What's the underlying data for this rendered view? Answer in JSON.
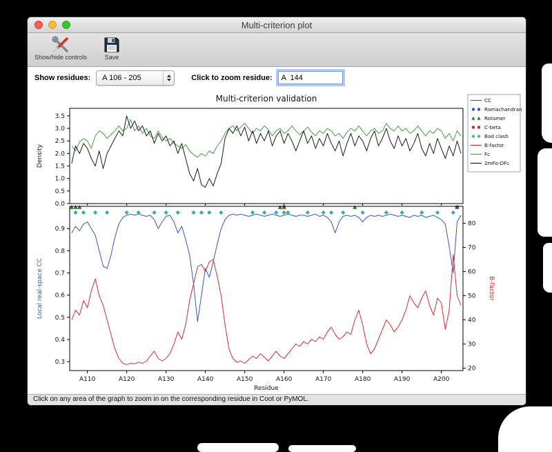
{
  "window": {
    "title": "Multi-criterion plot",
    "toolbar": {
      "show_hide_label": "Show/hide controls",
      "save_label": "Save"
    },
    "controls": {
      "show_residues_label": "Show residues:",
      "residue_range_value": "A 106 - 205",
      "zoom_label": "Click to zoom residue:",
      "zoom_value": "A  144"
    },
    "status_bar": "Click on any area of the graph to zoom in on the corresponding residue in Coot or PyMOL."
  },
  "figure": {
    "title": "Multi-criterion validation",
    "legend": [
      {
        "label": "CC",
        "type": "line",
        "color": "#3355cc"
      },
      {
        "label": "Ramachandran",
        "type": "circle",
        "color": "#3355cc"
      },
      {
        "label": "Rotamer",
        "type": "triangle",
        "color": "#1f7a1f"
      },
      {
        "label": "C-beta",
        "type": "square",
        "color": "#cc2222"
      },
      {
        "label": "Bad clash",
        "type": "diamond",
        "color": "#35ae9e"
      },
      {
        "label": "B-factor",
        "type": "line",
        "color": "#dd2b2b"
      },
      {
        "label": "Fc",
        "type": "line",
        "color": "#44a044"
      },
      {
        "label": "2mFo-DFc",
        "type": "line",
        "color": "#1a1a1a"
      }
    ]
  },
  "chart_data": [
    {
      "type": "line",
      "panel": "density",
      "ylabel": "Density",
      "ylim": [
        0,
        3.8
      ],
      "yticks": [
        0.0,
        0.5,
        1.0,
        1.5,
        2.0,
        2.5,
        3.0,
        3.5
      ],
      "x_start": 106,
      "series": [
        {
          "name": "Fc",
          "color": "#44a044",
          "values": [
            2.3,
            2.1,
            2.45,
            2.6,
            2.5,
            2.2,
            2.7,
            2.9,
            2.8,
            2.6,
            2.75,
            2.9,
            3.1,
            2.9,
            3.0,
            3.35,
            2.9,
            3.1,
            2.8,
            3.0,
            2.7,
            2.6,
            2.9,
            2.65,
            2.5,
            2.6,
            2.4,
            2.3,
            2.2,
            2.35,
            2.1,
            1.95,
            1.85,
            2.0,
            1.9,
            2.1,
            2.0,
            2.3,
            2.5,
            2.8,
            3.0,
            3.1,
            2.9,
            3.05,
            3.2,
            3.0,
            2.8,
            3.0,
            2.9,
            3.1,
            2.95,
            2.7,
            2.9,
            3.0,
            2.8,
            2.9,
            3.1,
            2.9,
            2.75,
            2.9,
            3.05,
            2.85,
            2.7,
            2.9,
            2.8,
            3.0,
            2.9,
            2.7,
            2.8,
            2.6,
            2.85,
            3.0,
            2.9,
            3.1,
            2.9,
            2.7,
            2.9,
            3.0,
            2.8,
            2.9,
            3.2,
            3.0,
            2.9,
            3.1,
            2.9,
            3.0,
            2.8,
            2.9,
            3.1,
            2.9,
            2.7,
            2.9,
            2.8,
            3.0,
            2.9,
            2.6,
            2.8,
            2.5,
            2.9,
            2.7
          ]
        },
        {
          "name": "2mFo-DFc",
          "color": "#1a1a1a",
          "values": [
            1.6,
            2.3,
            2.0,
            2.4,
            2.2,
            1.8,
            1.5,
            2.1,
            1.4,
            2.0,
            2.3,
            2.6,
            2.9,
            2.7,
            3.5,
            3.0,
            3.3,
            2.9,
            3.1,
            2.7,
            2.9,
            2.4,
            2.8,
            2.5,
            2.7,
            2.3,
            2.5,
            2.0,
            2.4,
            1.8,
            1.2,
            0.9,
            1.4,
            0.75,
            0.65,
            1.0,
            0.7,
            1.2,
            1.6,
            2.6,
            3.0,
            2.8,
            3.1,
            2.7,
            3.05,
            2.5,
            2.9,
            2.4,
            2.8,
            2.5,
            2.9,
            2.3,
            2.7,
            2.9,
            2.4,
            2.8,
            2.5,
            2.1,
            2.5,
            2.9,
            2.4,
            2.7,
            2.2,
            2.6,
            2.3,
            2.8,
            2.4,
            2.1,
            2.5,
            1.9,
            2.4,
            2.8,
            2.3,
            2.7,
            2.5,
            2.1,
            2.6,
            2.9,
            2.3,
            2.6,
            3.0,
            2.5,
            2.2,
            2.7,
            2.3,
            2.6,
            2.1,
            2.4,
            2.8,
            2.2,
            1.9,
            2.4,
            2.0,
            2.6,
            2.2,
            1.8,
            2.3,
            1.9,
            2.5,
            2.0
          ]
        }
      ]
    },
    {
      "type": "line",
      "panel": "cc_bfactor",
      "ylabel_left": "Local real-space CC",
      "ylabel_right": "B-factor",
      "xlabel": "Residue",
      "ylim_left": [
        0.26,
        1.0
      ],
      "yticks_left": [
        0.3,
        0.4,
        0.5,
        0.6,
        0.7,
        0.8,
        0.9
      ],
      "ylim_right": [
        19,
        87
      ],
      "yticks_right": [
        20,
        30,
        40,
        50,
        60,
        70,
        80
      ],
      "xticks": [
        110,
        120,
        130,
        140,
        150,
        160,
        170,
        180,
        190,
        200
      ],
      "xtick_prefix": "A",
      "x_start": 106,
      "series": [
        {
          "name": "CC",
          "color": "#3355cc",
          "axis": "left",
          "values": [
            0.88,
            0.91,
            0.89,
            0.92,
            0.93,
            0.9,
            0.87,
            0.8,
            0.73,
            0.72,
            0.78,
            0.86,
            0.92,
            0.95,
            0.96,
            0.965,
            0.96,
            0.965,
            0.96,
            0.955,
            0.96,
            0.94,
            0.9,
            0.93,
            0.955,
            0.96,
            0.93,
            0.88,
            0.91,
            0.85,
            0.78,
            0.65,
            0.48,
            0.6,
            0.72,
            0.68,
            0.75,
            0.83,
            0.9,
            0.94,
            0.96,
            0.965,
            0.96,
            0.965,
            0.96,
            0.955,
            0.96,
            0.965,
            0.96,
            0.955,
            0.96,
            0.965,
            0.96,
            0.955,
            0.96,
            0.965,
            0.96,
            0.955,
            0.96,
            0.96,
            0.955,
            0.96,
            0.965,
            0.955,
            0.96,
            0.95,
            0.93,
            0.88,
            0.93,
            0.955,
            0.96,
            0.955,
            0.96,
            0.95,
            0.93,
            0.95,
            0.96,
            0.955,
            0.96,
            0.955,
            0.96,
            0.965,
            0.96,
            0.955,
            0.96,
            0.955,
            0.95,
            0.96,
            0.955,
            0.96,
            0.95,
            0.955,
            0.96,
            0.95,
            0.94,
            0.92,
            0.82,
            0.7,
            0.93,
            0.96
          ]
        },
        {
          "name": "B-factor",
          "color": "#dd2b2b",
          "axis": "right",
          "values": [
            40,
            44,
            42,
            48,
            45,
            52,
            57,
            50,
            46,
            40,
            34,
            28,
            24,
            22,
            21.5,
            22,
            21.8,
            22.5,
            22,
            23,
            25,
            27,
            24,
            23,
            24,
            26,
            30,
            35,
            32,
            38,
            48,
            55,
            62,
            63,
            60,
            64,
            65,
            58,
            50,
            38,
            28,
            24,
            22.5,
            23,
            22,
            23.5,
            25,
            24,
            26,
            24.5,
            23,
            25,
            27,
            25,
            24,
            26,
            28,
            30,
            29,
            31,
            30,
            32,
            31,
            33,
            32,
            35,
            37,
            34,
            32,
            33,
            35,
            34,
            40,
            44,
            38,
            30,
            26,
            28,
            32,
            36,
            40,
            38,
            35,
            37,
            40,
            44,
            50,
            47,
            45,
            49,
            52,
            46,
            42,
            49,
            47,
            36,
            44,
            67,
            50,
            46
          ]
        }
      ],
      "markers": [
        {
          "name": "Bad clash",
          "shape": "diamond",
          "color": "#35ae9e",
          "y": 0.972,
          "x": [
            107,
            109,
            112,
            115,
            120,
            123,
            127,
            130,
            133,
            137,
            139,
            141,
            144,
            152,
            155,
            158,
            160,
            161,
            166,
            170,
            172,
            175,
            180,
            186,
            190,
            195,
            199,
            203
          ]
        },
        {
          "name": "Rotamer",
          "shape": "triangle",
          "color": "#1f7a1f",
          "y": 0.996,
          "x": [
            106,
            107,
            108,
            159,
            160,
            178,
            204
          ]
        },
        {
          "name": "C-beta",
          "shape": "square",
          "color": "#cc2222",
          "y": 0.996,
          "x": [
            160,
            204
          ]
        },
        {
          "name": "Ramachandran",
          "shape": "circle",
          "color": "#3355cc",
          "y": 0.996,
          "x": [
            204
          ]
        }
      ]
    }
  ]
}
